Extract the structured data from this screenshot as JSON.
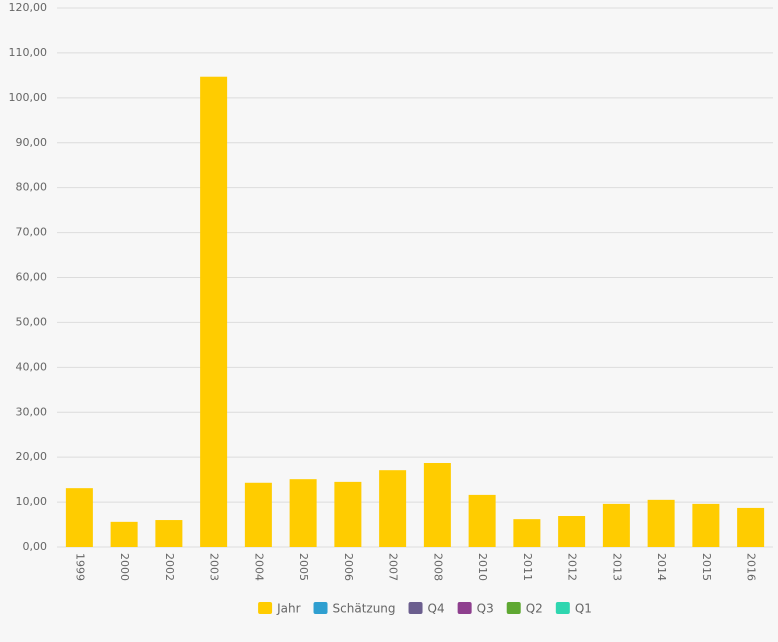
{
  "chart_data": {
    "type": "bar",
    "categories": [
      "1999",
      "2000",
      "2002",
      "2003",
      "2004",
      "2005",
      "2006",
      "2007",
      "2008",
      "2010",
      "2011",
      "2012",
      "2013",
      "2014",
      "2015",
      "2016"
    ],
    "series": [
      {
        "name": "Jahr",
        "color": "#ffcc00",
        "values": [
          13.1,
          5.6,
          6.0,
          104.7,
          14.3,
          15.1,
          14.5,
          17.1,
          18.7,
          11.6,
          6.2,
          6.9,
          9.6,
          10.5,
          9.6,
          8.7
        ]
      },
      {
        "name": "Schätzung",
        "color": "#2f9fd0",
        "values": [
          null,
          null,
          null,
          null,
          null,
          null,
          null,
          null,
          null,
          null,
          null,
          null,
          null,
          null,
          null,
          null
        ]
      },
      {
        "name": "Q4",
        "color": "#6b5e8e",
        "values": [
          null,
          null,
          null,
          null,
          null,
          null,
          null,
          null,
          null,
          null,
          null,
          null,
          null,
          null,
          null,
          null
        ]
      },
      {
        "name": "Q3",
        "color": "#8e3f8e",
        "values": [
          null,
          null,
          null,
          null,
          null,
          null,
          null,
          null,
          null,
          null,
          null,
          null,
          null,
          null,
          null,
          null
        ]
      },
      {
        "name": "Q2",
        "color": "#5fa832",
        "values": [
          null,
          null,
          null,
          null,
          null,
          null,
          null,
          null,
          null,
          null,
          null,
          null,
          null,
          null,
          null,
          null
        ]
      },
      {
        "name": "Q1",
        "color": "#2fd6b0",
        "values": [
          null,
          null,
          null,
          null,
          null,
          null,
          null,
          null,
          null,
          null,
          null,
          null,
          null,
          null,
          null,
          null
        ]
      }
    ],
    "ylim": [
      0,
      120
    ],
    "yticks": [
      {
        "value": 0,
        "label": "0,00"
      },
      {
        "value": 10,
        "label": "10,00"
      },
      {
        "value": 20,
        "label": "20,00"
      },
      {
        "value": 30,
        "label": "30,00"
      },
      {
        "value": 40,
        "label": "40,00"
      },
      {
        "value": 50,
        "label": "50,00"
      },
      {
        "value": 60,
        "label": "60,00"
      },
      {
        "value": 70,
        "label": "70,00"
      },
      {
        "value": 80,
        "label": "80,00"
      },
      {
        "value": 90,
        "label": "90,00"
      },
      {
        "value": 100,
        "label": "100,00"
      },
      {
        "value": 110,
        "label": "110,00"
      },
      {
        "value": 120,
        "label": "120,00"
      }
    ],
    "grid": true,
    "legend": "bottom"
  }
}
